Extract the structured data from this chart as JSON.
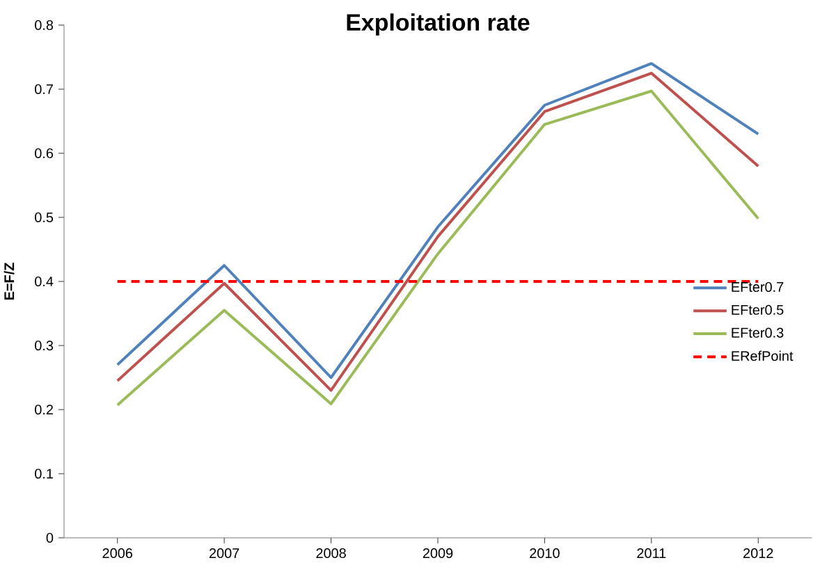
{
  "chart_data": {
    "type": "line",
    "title": "Exploitation rate",
    "ylabel": "E=F/Z",
    "categories": [
      "2006",
      "2007",
      "2008",
      "2009",
      "2010",
      "2011",
      "2012"
    ],
    "series": [
      {
        "name": "EFter0.7",
        "color": "#4f81bd",
        "values": [
          0.27,
          0.425,
          0.25,
          0.485,
          0.675,
          0.74,
          0.63
        ]
      },
      {
        "name": "EFter0.5",
        "color": "#c0504d",
        "values": [
          0.245,
          0.397,
          0.23,
          0.47,
          0.665,
          0.725,
          0.58
        ]
      },
      {
        "name": "EFter0.3",
        "color": "#9bbb59",
        "values": [
          0.207,
          0.355,
          0.209,
          0.443,
          0.645,
          0.697,
          0.498
        ]
      }
    ],
    "ref_lines": [
      {
        "axis": "y",
        "value": 0.4,
        "label": "ERefPoint",
        "color": "#ff0000",
        "line_style": "dashed"
      }
    ],
    "ylim": [
      0,
      0.8
    ],
    "yticks": [
      0,
      0.1,
      0.2,
      0.3,
      0.4,
      0.5,
      0.6,
      0.7,
      0.8
    ],
    "grid": false,
    "legend": "right",
    "marker": "none",
    "line_style": "solid"
  }
}
